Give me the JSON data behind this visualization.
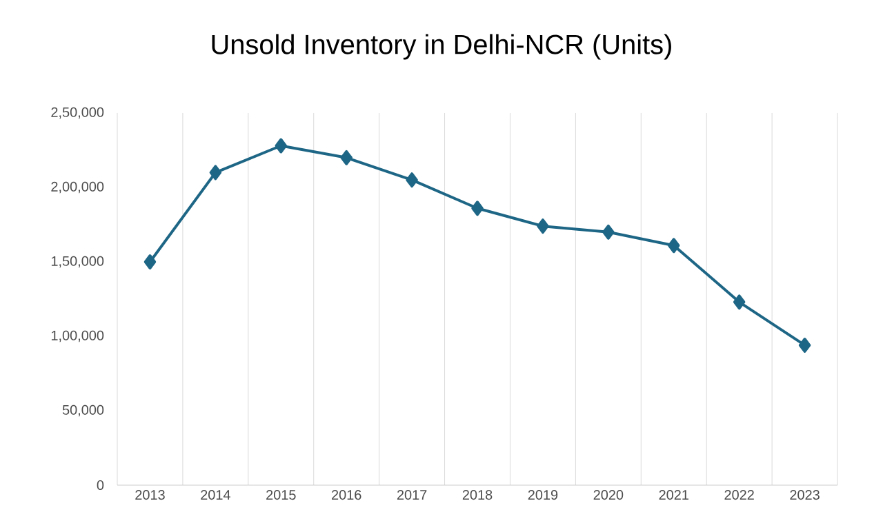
{
  "chart_data": {
    "type": "line",
    "title": "Unsold Inventory in Delhi-NCR (Units)",
    "categories": [
      "2013",
      "2014",
      "2015",
      "2016",
      "2017",
      "2018",
      "2019",
      "2020",
      "2021",
      "2022",
      "2023"
    ],
    "values": [
      150000,
      210000,
      228000,
      220000,
      205000,
      186000,
      174000,
      170000,
      161000,
      123000,
      94000
    ],
    "color": "#1e6685",
    "marker": "diamond",
    "line_style": "solid",
    "grid": "x",
    "ylim": [
      0,
      250000
    ],
    "yticks": [
      0,
      {
        "value": 50000,
        "label": "50,000"
      },
      {
        "value": 100000,
        "label": "1,00,000"
      },
      {
        "value": 150000,
        "label": "1,50,000"
      },
      {
        "value": 200000,
        "label": "2,00,000"
      },
      {
        "value": 250000,
        "label": "2,50,000"
      }
    ]
  }
}
